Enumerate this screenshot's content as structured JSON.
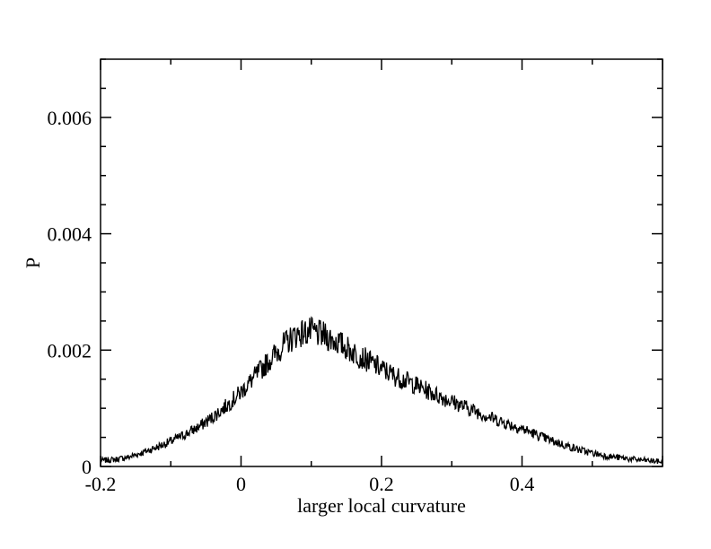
{
  "chart_data": {
    "type": "line",
    "title": "",
    "xlabel": "larger local curvature",
    "ylabel": "P",
    "xlim": [
      -0.2,
      0.6
    ],
    "ylim": [
      0,
      0.007
    ],
    "grid": false,
    "x_ticks": [
      "-0.2",
      "0",
      "0.2",
      "0.4"
    ],
    "y_ticks": [
      "0",
      "0.002",
      "0.004",
      "0.006"
    ],
    "x_tick_values": [
      -0.2,
      0,
      0.2,
      0.4
    ],
    "y_tick_values": [
      0,
      0.002,
      0.004,
      0.006
    ],
    "series": [
      {
        "color": "#000000",
        "x": [
          -0.2,
          -0.18,
          -0.16,
          -0.14,
          -0.12,
          -0.1,
          -0.08,
          -0.06,
          -0.04,
          -0.02,
          0.0,
          0.02,
          0.04,
          0.06,
          0.08,
          0.1,
          0.12,
          0.14,
          0.16,
          0.18,
          0.2,
          0.22,
          0.24,
          0.26,
          0.28,
          0.3,
          0.32,
          0.34,
          0.36,
          0.38,
          0.4,
          0.42,
          0.44,
          0.46,
          0.48,
          0.5,
          0.52,
          0.54,
          0.56,
          0.58,
          0.6
        ],
        "y": [
          0.0001,
          0.00012,
          0.00016,
          0.00024,
          0.00033,
          0.00043,
          0.00055,
          0.00068,
          0.00085,
          0.00105,
          0.00128,
          0.00155,
          0.00182,
          0.00208,
          0.00228,
          0.00232,
          0.00224,
          0.00212,
          0.00196,
          0.00182,
          0.00168,
          0.00155,
          0.00145,
          0.00133,
          0.00122,
          0.00112,
          0.00102,
          0.00092,
          0.00082,
          0.00073,
          0.00065,
          0.00055,
          0.00045,
          0.00037,
          0.00029,
          0.00023,
          0.00018,
          0.00015,
          0.00012,
          0.0001,
          8e-05
        ]
      }
    ]
  }
}
